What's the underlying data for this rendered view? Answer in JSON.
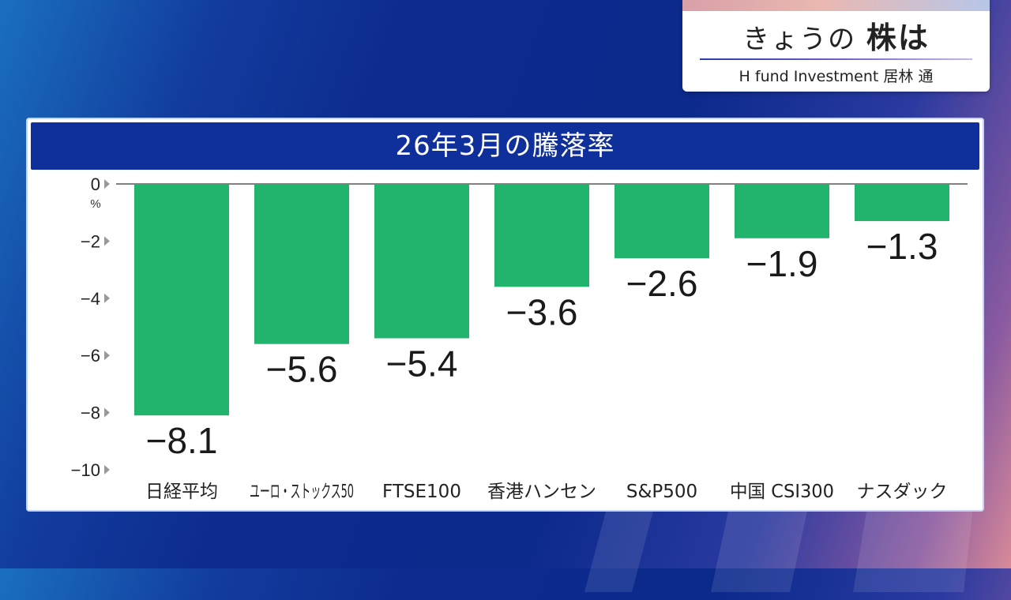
{
  "caption": {
    "title_prefix": "きょうの",
    "title_emph": "株は",
    "subtitle": "H fund Investment  居林 通"
  },
  "chart_data": {
    "type": "bar",
    "title": "26年3月の騰落率",
    "unit": "%",
    "categories": [
      "日経平均",
      "ユーロ・ストックス50",
      "FTSE100",
      "香港ハンセン",
      "S&P500",
      "中国 CSI300",
      "ナスダック"
    ],
    "values": [
      -8.1,
      -5.6,
      -5.4,
      -3.6,
      -2.6,
      -1.9,
      -1.3
    ],
    "value_labels": [
      "−8.1",
      "−5.6",
      "−5.4",
      "−3.6",
      "−2.6",
      "−1.9",
      "−1.3"
    ],
    "ylim": [
      -10,
      0
    ],
    "yticks": [
      0,
      -2,
      -4,
      -6,
      -8,
      -10
    ],
    "ytick_labels": [
      "0",
      "−2",
      "−4",
      "−6",
      "−8",
      "−10"
    ],
    "bar_color": "#22b46c"
  }
}
